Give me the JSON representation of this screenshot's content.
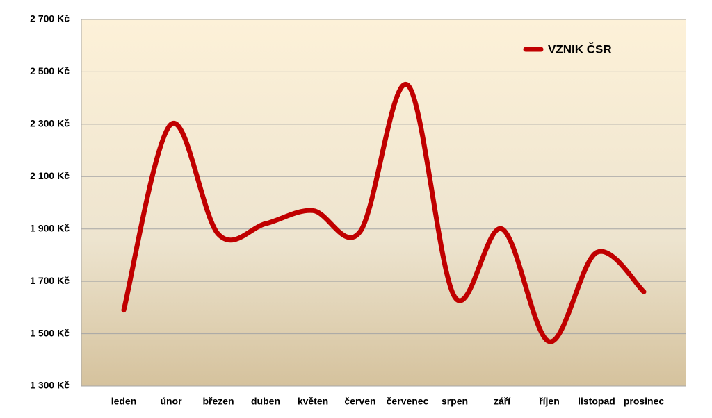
{
  "chart_data": {
    "type": "line",
    "categories": [
      "leden",
      "únor",
      "březen",
      "duben",
      "květen",
      "červen",
      "červenec",
      "srpen",
      "září",
      "říjen",
      "listopad",
      "prosinec"
    ],
    "series": [
      {
        "name": "VZNIK ČSR",
        "color": "#c00000",
        "values": [
          1590,
          2300,
          1880,
          1920,
          1970,
          1890,
          2450,
          1640,
          1900,
          1470,
          1810,
          1660
        ]
      }
    ],
    "ylim": [
      1300,
      2700
    ],
    "yticks": [
      {
        "value": 1300,
        "label": "1 300 Kč"
      },
      {
        "value": 1500,
        "label": "1 500 Kč"
      },
      {
        "value": 1700,
        "label": "1 700 Kč"
      },
      {
        "value": 1900,
        "label": "1 900 Kč"
      },
      {
        "value": 2100,
        "label": "2 100 Kč"
      },
      {
        "value": 2300,
        "label": "2 300 Kč"
      },
      {
        "value": 2500,
        "label": "2 500 Kč"
      },
      {
        "value": 2700,
        "label": "2 700 Kč"
      }
    ],
    "grid": true,
    "smooth": true,
    "legend": "top-right"
  }
}
